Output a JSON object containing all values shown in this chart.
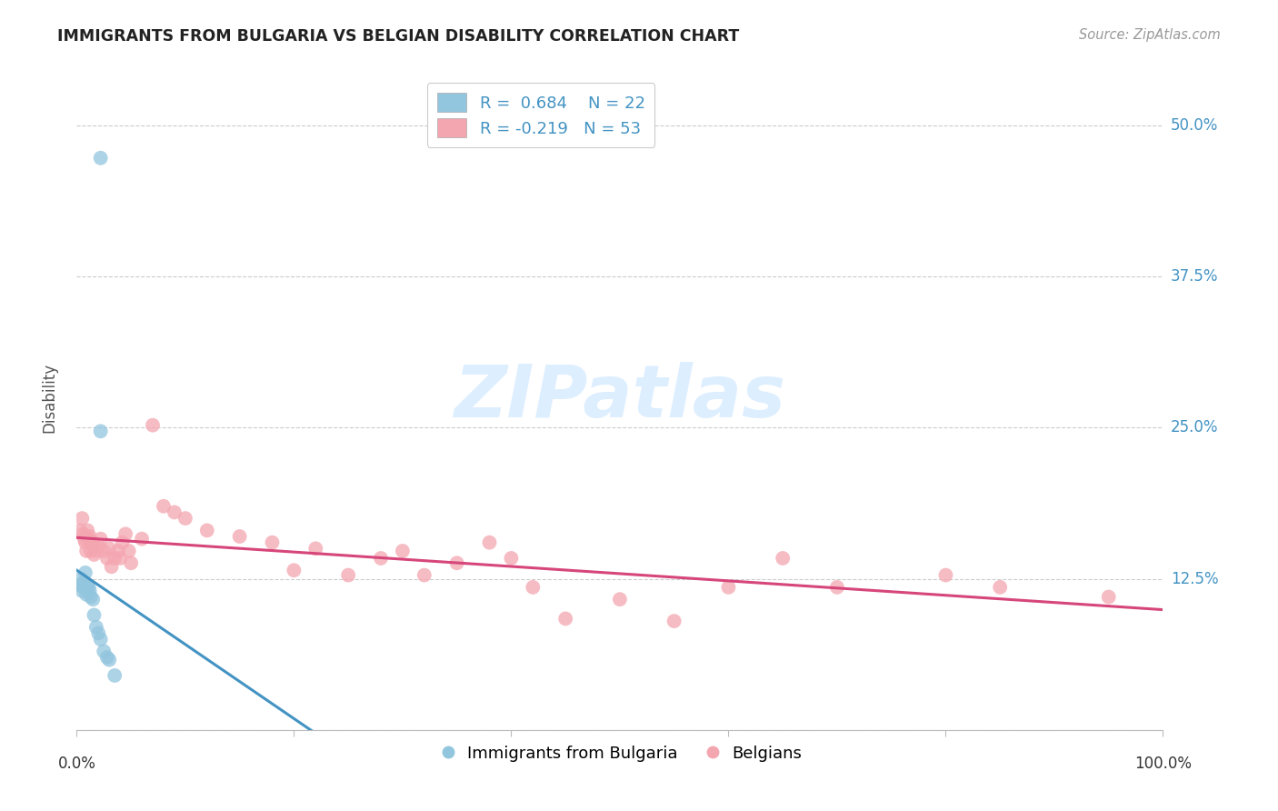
{
  "title": "IMMIGRANTS FROM BULGARIA VS BELGIAN DISABILITY CORRELATION CHART",
  "source": "Source: ZipAtlas.com",
  "ylabel": "Disability",
  "xlim": [
    0.0,
    1.0
  ],
  "ylim": [
    0.0,
    0.55
  ],
  "yticks": [
    0.0,
    0.125,
    0.25,
    0.375,
    0.5
  ],
  "ytick_labels": [
    "",
    "12.5%",
    "25.0%",
    "37.5%",
    "50.0%"
  ],
  "xticks": [
    0.0,
    0.2,
    0.4,
    0.6,
    0.8,
    1.0
  ],
  "xtick_labels": [
    "0.0%",
    "",
    "",
    "",
    "",
    "100.0%"
  ],
  "blue_R": 0.684,
  "blue_N": 22,
  "pink_R": -0.219,
  "pink_N": 53,
  "blue_color": "#92c5de",
  "pink_color": "#f4a6b0",
  "blue_line_color": "#4393c3",
  "pink_line_color": "#d6467a",
  "legend_text_color": "#4393c3",
  "watermark_text": "ZIPatlas",
  "watermark_color": "#ddeeff",
  "blue_x": [
    0.003,
    0.004,
    0.005,
    0.006,
    0.007,
    0.008,
    0.009,
    0.01,
    0.011,
    0.012,
    0.013,
    0.015,
    0.016,
    0.018,
    0.02,
    0.022,
    0.025,
    0.028,
    0.03,
    0.035,
    0.022,
    0.022
  ],
  "blue_y": [
    0.12,
    0.125,
    0.115,
    0.118,
    0.122,
    0.13,
    0.112,
    0.12,
    0.118,
    0.115,
    0.11,
    0.108,
    0.095,
    0.085,
    0.08,
    0.075,
    0.065,
    0.06,
    0.058,
    0.045,
    0.247,
    0.473
  ],
  "pink_x": [
    0.003,
    0.005,
    0.006,
    0.007,
    0.008,
    0.009,
    0.01,
    0.011,
    0.012,
    0.013,
    0.015,
    0.016,
    0.018,
    0.02,
    0.022,
    0.025,
    0.028,
    0.03,
    0.032,
    0.035,
    0.038,
    0.04,
    0.042,
    0.045,
    0.048,
    0.05,
    0.06,
    0.07,
    0.08,
    0.09,
    0.1,
    0.12,
    0.15,
    0.18,
    0.2,
    0.22,
    0.25,
    0.28,
    0.3,
    0.32,
    0.35,
    0.38,
    0.4,
    0.42,
    0.45,
    0.5,
    0.55,
    0.6,
    0.65,
    0.7,
    0.8,
    0.85,
    0.95
  ],
  "pink_y": [
    0.165,
    0.175,
    0.162,
    0.158,
    0.155,
    0.148,
    0.165,
    0.158,
    0.16,
    0.148,
    0.155,
    0.145,
    0.148,
    0.152,
    0.158,
    0.148,
    0.142,
    0.15,
    0.135,
    0.142,
    0.148,
    0.142,
    0.155,
    0.162,
    0.148,
    0.138,
    0.158,
    0.252,
    0.185,
    0.18,
    0.175,
    0.165,
    0.16,
    0.155,
    0.132,
    0.15,
    0.128,
    0.142,
    0.148,
    0.128,
    0.138,
    0.155,
    0.142,
    0.118,
    0.092,
    0.108,
    0.09,
    0.118,
    0.142,
    0.118,
    0.128,
    0.118,
    0.11
  ],
  "blue_line_x0": 0.0,
  "blue_line_x1": 1.0,
  "pink_line_x0": 0.0,
  "pink_line_x1": 1.0
}
